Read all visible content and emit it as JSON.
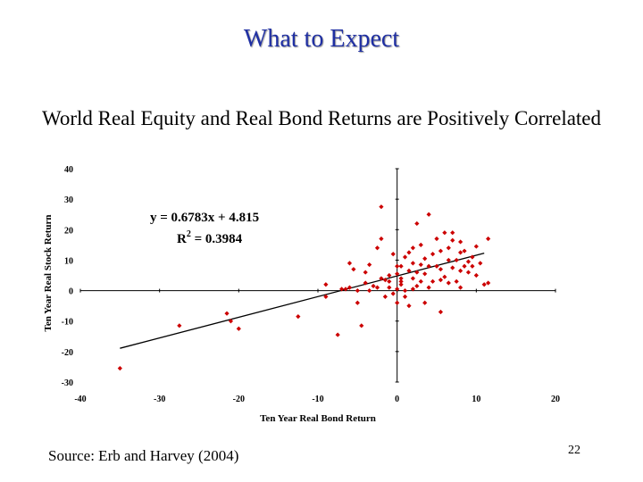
{
  "slide": {
    "title": "What to Expect",
    "subtitle": "World Real Equity and Real Bond Returns are Positively Correlated",
    "source": "Source: Erb and Harvey (2004)",
    "page_number": "22"
  },
  "colors": {
    "title": "#1f2fa3",
    "points": "#cc0000",
    "axes": "#000000"
  },
  "chart_data": {
    "type": "scatter",
    "title": "",
    "xlabel": "Ten Year Real Bond Return",
    "ylabel": "Ten Year Real Stock Return",
    "xlim": [
      -40,
      20
    ],
    "ylim": [
      -30,
      40
    ],
    "xticks": [
      "-40",
      "-30",
      "-20",
      "-10",
      "0",
      "10",
      "20"
    ],
    "yticks": [
      "40",
      "30",
      "20",
      "10",
      "0",
      "-10",
      "-20",
      "-30"
    ],
    "grid": false,
    "legend": "none",
    "annotation": {
      "equation": "y = 0.6783x + 4.815",
      "r2_label": "R",
      "r2_sup": "2",
      "r2_value": " = 0.3984"
    },
    "trendline": {
      "slope": 0.6783,
      "intercept": 4.815,
      "x_range": [
        -35,
        11
      ]
    },
    "points": [
      [
        -35,
        -25.5
      ],
      [
        -27.5,
        -11.5
      ],
      [
        -21.5,
        -7.5
      ],
      [
        -21,
        -10
      ],
      [
        -20,
        -12.5
      ],
      [
        -12.5,
        -8.5
      ],
      [
        -9,
        2
      ],
      [
        -9,
        -2
      ],
      [
        -7.5,
        -14.5
      ],
      [
        -7,
        0.5
      ],
      [
        -6.5,
        0.5
      ],
      [
        -6,
        9
      ],
      [
        -6,
        1
      ],
      [
        -5.5,
        7
      ],
      [
        -5,
        -4
      ],
      [
        -5,
        0
      ],
      [
        -4.5,
        -11.5
      ],
      [
        -4,
        2.5
      ],
      [
        -4,
        6
      ],
      [
        -3.5,
        0
      ],
      [
        -3.5,
        8.5
      ],
      [
        -3,
        1.5
      ],
      [
        -2.5,
        1
      ],
      [
        -2.5,
        14
      ],
      [
        -2,
        17
      ],
      [
        -2,
        27.5
      ],
      [
        -2,
        4
      ],
      [
        -1.5,
        -2
      ],
      [
        -1.5,
        3.5
      ],
      [
        -1,
        5
      ],
      [
        -1,
        3
      ],
      [
        -1,
        1
      ],
      [
        -0.5,
        12
      ],
      [
        -0.5,
        -1
      ],
      [
        0,
        8
      ],
      [
        0,
        0.5
      ],
      [
        0,
        -4
      ],
      [
        0,
        5.5
      ],
      [
        0.5,
        2
      ],
      [
        0.5,
        4
      ],
      [
        0.5,
        8
      ],
      [
        0.5,
        3
      ],
      [
        1,
        11
      ],
      [
        1,
        -2
      ],
      [
        1,
        0
      ],
      [
        1.5,
        12.5
      ],
      [
        1.5,
        6.5
      ],
      [
        1.5,
        -5
      ],
      [
        2,
        4
      ],
      [
        2,
        14
      ],
      [
        2,
        0.5
      ],
      [
        2,
        9
      ],
      [
        2.5,
        22
      ],
      [
        2.5,
        6
      ],
      [
        2.5,
        1.5
      ],
      [
        3,
        8.5
      ],
      [
        3,
        15
      ],
      [
        3,
        3
      ],
      [
        3.5,
        -4
      ],
      [
        3.5,
        5.5
      ],
      [
        3.5,
        10.5
      ],
      [
        4,
        25
      ],
      [
        4,
        1
      ],
      [
        4,
        8
      ],
      [
        4.5,
        12
      ],
      [
        4.5,
        3
      ],
      [
        5,
        17
      ],
      [
        5,
        8
      ],
      [
        5.5,
        7
      ],
      [
        5.5,
        3.5
      ],
      [
        5.5,
        -7
      ],
      [
        5.5,
        13
      ],
      [
        6,
        19
      ],
      [
        6,
        4.5
      ],
      [
        6.5,
        10
      ],
      [
        6.5,
        14
      ],
      [
        6.5,
        2.5
      ],
      [
        7,
        19
      ],
      [
        7,
        7.5
      ],
      [
        7,
        16.5
      ],
      [
        7.5,
        10
      ],
      [
        7.5,
        3
      ],
      [
        8,
        16
      ],
      [
        8,
        12.5
      ],
      [
        8,
        6.5
      ],
      [
        8,
        1
      ],
      [
        8.5,
        8
      ],
      [
        8.5,
        13
      ],
      [
        9,
        6
      ],
      [
        9,
        9.5
      ],
      [
        9.5,
        11
      ],
      [
        9.5,
        8
      ],
      [
        10,
        14.5
      ],
      [
        10,
        5
      ],
      [
        10.5,
        9
      ],
      [
        11,
        2
      ],
      [
        11.5,
        17
      ],
      [
        11.5,
        2.5
      ]
    ]
  }
}
